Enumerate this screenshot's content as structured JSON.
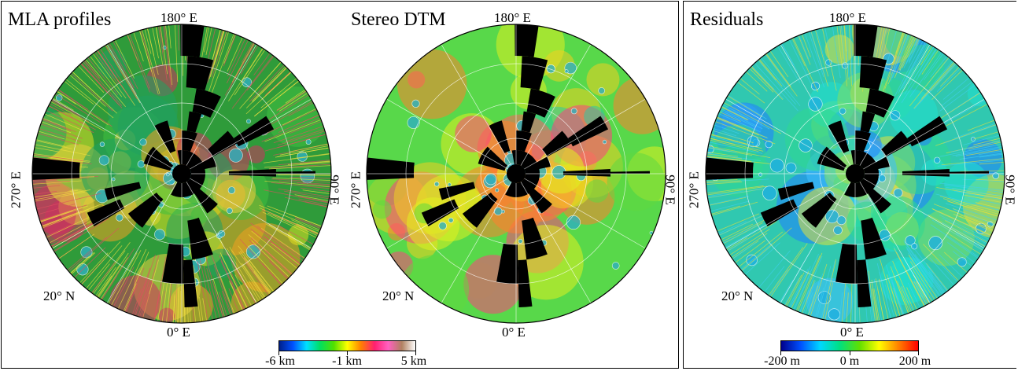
{
  "panels": [
    {
      "title": "MLA profiles",
      "lon_top": "180° E",
      "lon_left": "270° E",
      "lon_right": "90° E",
      "lon_bottom": "0° E",
      "lat_label": "20° N"
    },
    {
      "title": "Stereo DTM",
      "lon_top": "180° E",
      "lon_left": "270° E",
      "lon_right": "90° E",
      "lon_bottom": "0° E",
      "lat_label": "20° N"
    },
    {
      "title": "Residuals",
      "lon_top": "180° E",
      "lon_left": "270° E",
      "lon_right": "90° E",
      "lon_bottom": "0° E",
      "lat_label": "20° N"
    }
  ],
  "colorbars": [
    {
      "labels": [
        "-6 km",
        "-1 km",
        "5 km"
      ],
      "values": [
        -6,
        -1,
        5
      ],
      "colors": [
        "#00208c",
        "#0050ff",
        "#00e0ff",
        "#00e060",
        "#50e000",
        "#ffff00",
        "#ff8000",
        "#ff2070",
        "#ff60c0",
        "#b08060",
        "#ffffff"
      ]
    },
    {
      "labels": [
        "-200 m",
        "0 m",
        "200 m"
      ],
      "values": [
        -200,
        0,
        200
      ],
      "colors": [
        "#00008c",
        "#0050ff",
        "#00d8ff",
        "#00e080",
        "#60e000",
        "#ffff00",
        "#ff8000",
        "#ff0000"
      ]
    }
  ],
  "colors": {
    "mla_base": "#2f9b3a",
    "dtm_base": "#58d84a",
    "res_base": "#30c8b0",
    "gap": "#000000"
  }
}
